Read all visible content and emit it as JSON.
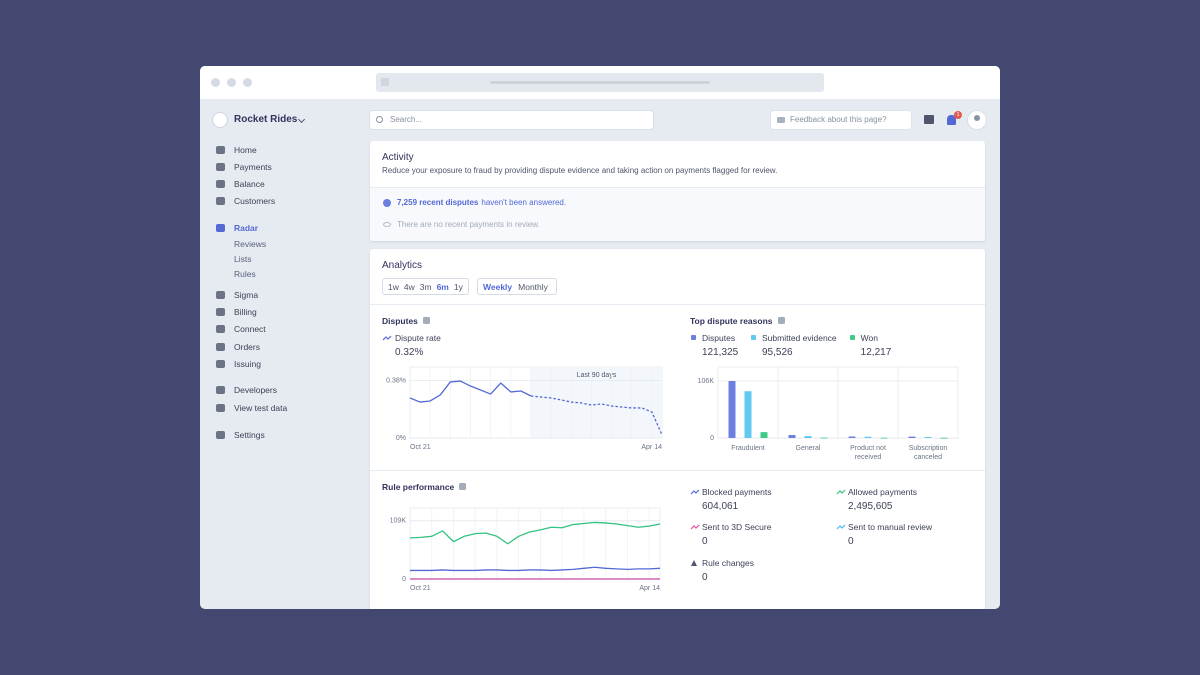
{
  "sidebar": {
    "account": "Rocket Rides",
    "nav": [
      "Home",
      "Payments",
      "Balance",
      "Customers"
    ],
    "radar": {
      "label": "Radar",
      "items": [
        "Reviews",
        "Lists",
        "Rules"
      ]
    },
    "products": [
      "Sigma",
      "Billing",
      "Connect",
      "Orders",
      "Issuing"
    ],
    "developer": [
      "Developers",
      "View test data"
    ],
    "settings": "Settings"
  },
  "topbar": {
    "search_placeholder": "Search...",
    "feedback": "Feedback about this page?",
    "notifications": "1"
  },
  "activity": {
    "title": "Activity",
    "description": "Reduce your exposure to fraud by providing dispute evidence and taking action on payments flagged for review.",
    "alert_link": "7,259 recent disputes",
    "alert_text": "haven't been answered.",
    "review_note": "There are no recent payments in review."
  },
  "analytics": {
    "title": "Analytics",
    "ranges": [
      "1w",
      "4w",
      "3m",
      "6m",
      "1y"
    ],
    "active_range": "6m",
    "periods": [
      "Weekly",
      "Monthly"
    ],
    "active_period": "Weekly",
    "disputes": {
      "type": "line",
      "title": "Disputes",
      "annotation": "Last 90 days",
      "highlight_from": 12,
      "categories": [
        "Oct 21",
        null,
        null,
        null,
        null,
        null,
        null,
        null,
        null,
        null,
        null,
        null,
        null,
        null,
        null,
        null,
        null,
        null,
        null,
        null,
        null,
        null,
        null,
        null,
        null,
        "Apr 14"
      ],
      "series": [
        {
          "name": "Dispute rate",
          "color": "#5469d4",
          "summary": "0.32%",
          "values": [
            0.265,
            0.238,
            0.245,
            0.285,
            0.371,
            0.377,
            0.344,
            0.318,
            0.291,
            0.364,
            0.305,
            0.311,
            0.278,
            0.271,
            0.265,
            0.252,
            0.238,
            0.232,
            0.218,
            0.225,
            0.212,
            0.205,
            0.199,
            0.199,
            0.172,
            0.02
          ]
        }
      ],
      "ylim": [
        0,
        0.47
      ],
      "yticks": [
        {
          "value": 0,
          "label": "0%"
        },
        {
          "value": 0.38,
          "label": "0.38%"
        }
      ]
    },
    "dispute_reasons": {
      "type": "bar",
      "title": "Top dispute reasons",
      "categories": [
        "Fraudulent",
        "General",
        "Product not received",
        "Subscription canceled"
      ],
      "series": [
        {
          "name": "Disputes",
          "color": "#6c7fe0",
          "summary": "121,325",
          "values": [
            106000,
            5600,
            2800,
            2600
          ]
        },
        {
          "name": "Submitted evidence",
          "color": "#5fc9f2",
          "summary": "95,526",
          "values": [
            87000,
            3700,
            2400,
            1900
          ]
        },
        {
          "name": "Won",
          "color": "#3dcb8a",
          "summary": "12,217",
          "values": [
            11000,
            600,
            500,
            400
          ]
        }
      ],
      "ylim": [
        0,
        132000
      ],
      "yticks": [
        0,
        {
          "value": 106000,
          "label": "106K"
        }
      ]
    },
    "rule_performance": {
      "type": "line",
      "title": "Rule performance",
      "categories": [
        "Oct 21",
        null,
        null,
        null,
        null,
        null,
        null,
        null,
        null,
        null,
        null,
        null,
        null,
        null,
        null,
        null,
        null,
        null,
        null,
        null,
        null,
        null,
        null,
        "Apr 14"
      ],
      "series": [
        {
          "name": "Blocked payments",
          "color": "#5469d4",
          "summary": "604,061",
          "values": [
            16000,
            16000,
            16000,
            17000,
            16000,
            16000,
            16000,
            17000,
            17000,
            16000,
            16000,
            17000,
            17000,
            16000,
            17000,
            18000,
            20000,
            22000,
            20000,
            19000,
            18000,
            19000,
            19000,
            20000
          ]
        },
        {
          "name": "Allowed payments",
          "color": "#33c27f",
          "summary": "2,495,605",
          "values": [
            77000,
            78000,
            80000,
            90000,
            70000,
            80000,
            85000,
            86000,
            80000,
            66000,
            80000,
            88000,
            92000,
            97000,
            96000,
            102000,
            104000,
            106000,
            105000,
            103000,
            100000,
            97000,
            99000,
            103000
          ]
        },
        {
          "name": "Sent to 3D Secure",
          "color": "#e052a6",
          "summary": "0",
          "values": [
            0,
            0,
            0,
            0,
            0,
            0,
            0,
            0,
            0,
            0,
            0,
            0,
            0,
            0,
            0,
            0,
            0,
            0,
            0,
            0,
            0,
            0,
            0,
            0
          ]
        },
        {
          "name": "Sent to manual review",
          "color": "#4cb8f0",
          "summary": "0",
          "values": [
            0,
            0,
            0,
            0,
            0,
            0,
            0,
            0,
            0,
            0,
            0,
            0,
            0,
            0,
            0,
            0,
            0,
            0,
            0,
            0,
            0,
            0,
            0,
            0
          ]
        }
      ],
      "rule_changes": {
        "name": "Rule changes",
        "summary": "0"
      },
      "ylim": [
        0,
        133000
      ],
      "yticks": [
        0,
        {
          "value": 109000,
          "label": "109K"
        }
      ]
    }
  }
}
